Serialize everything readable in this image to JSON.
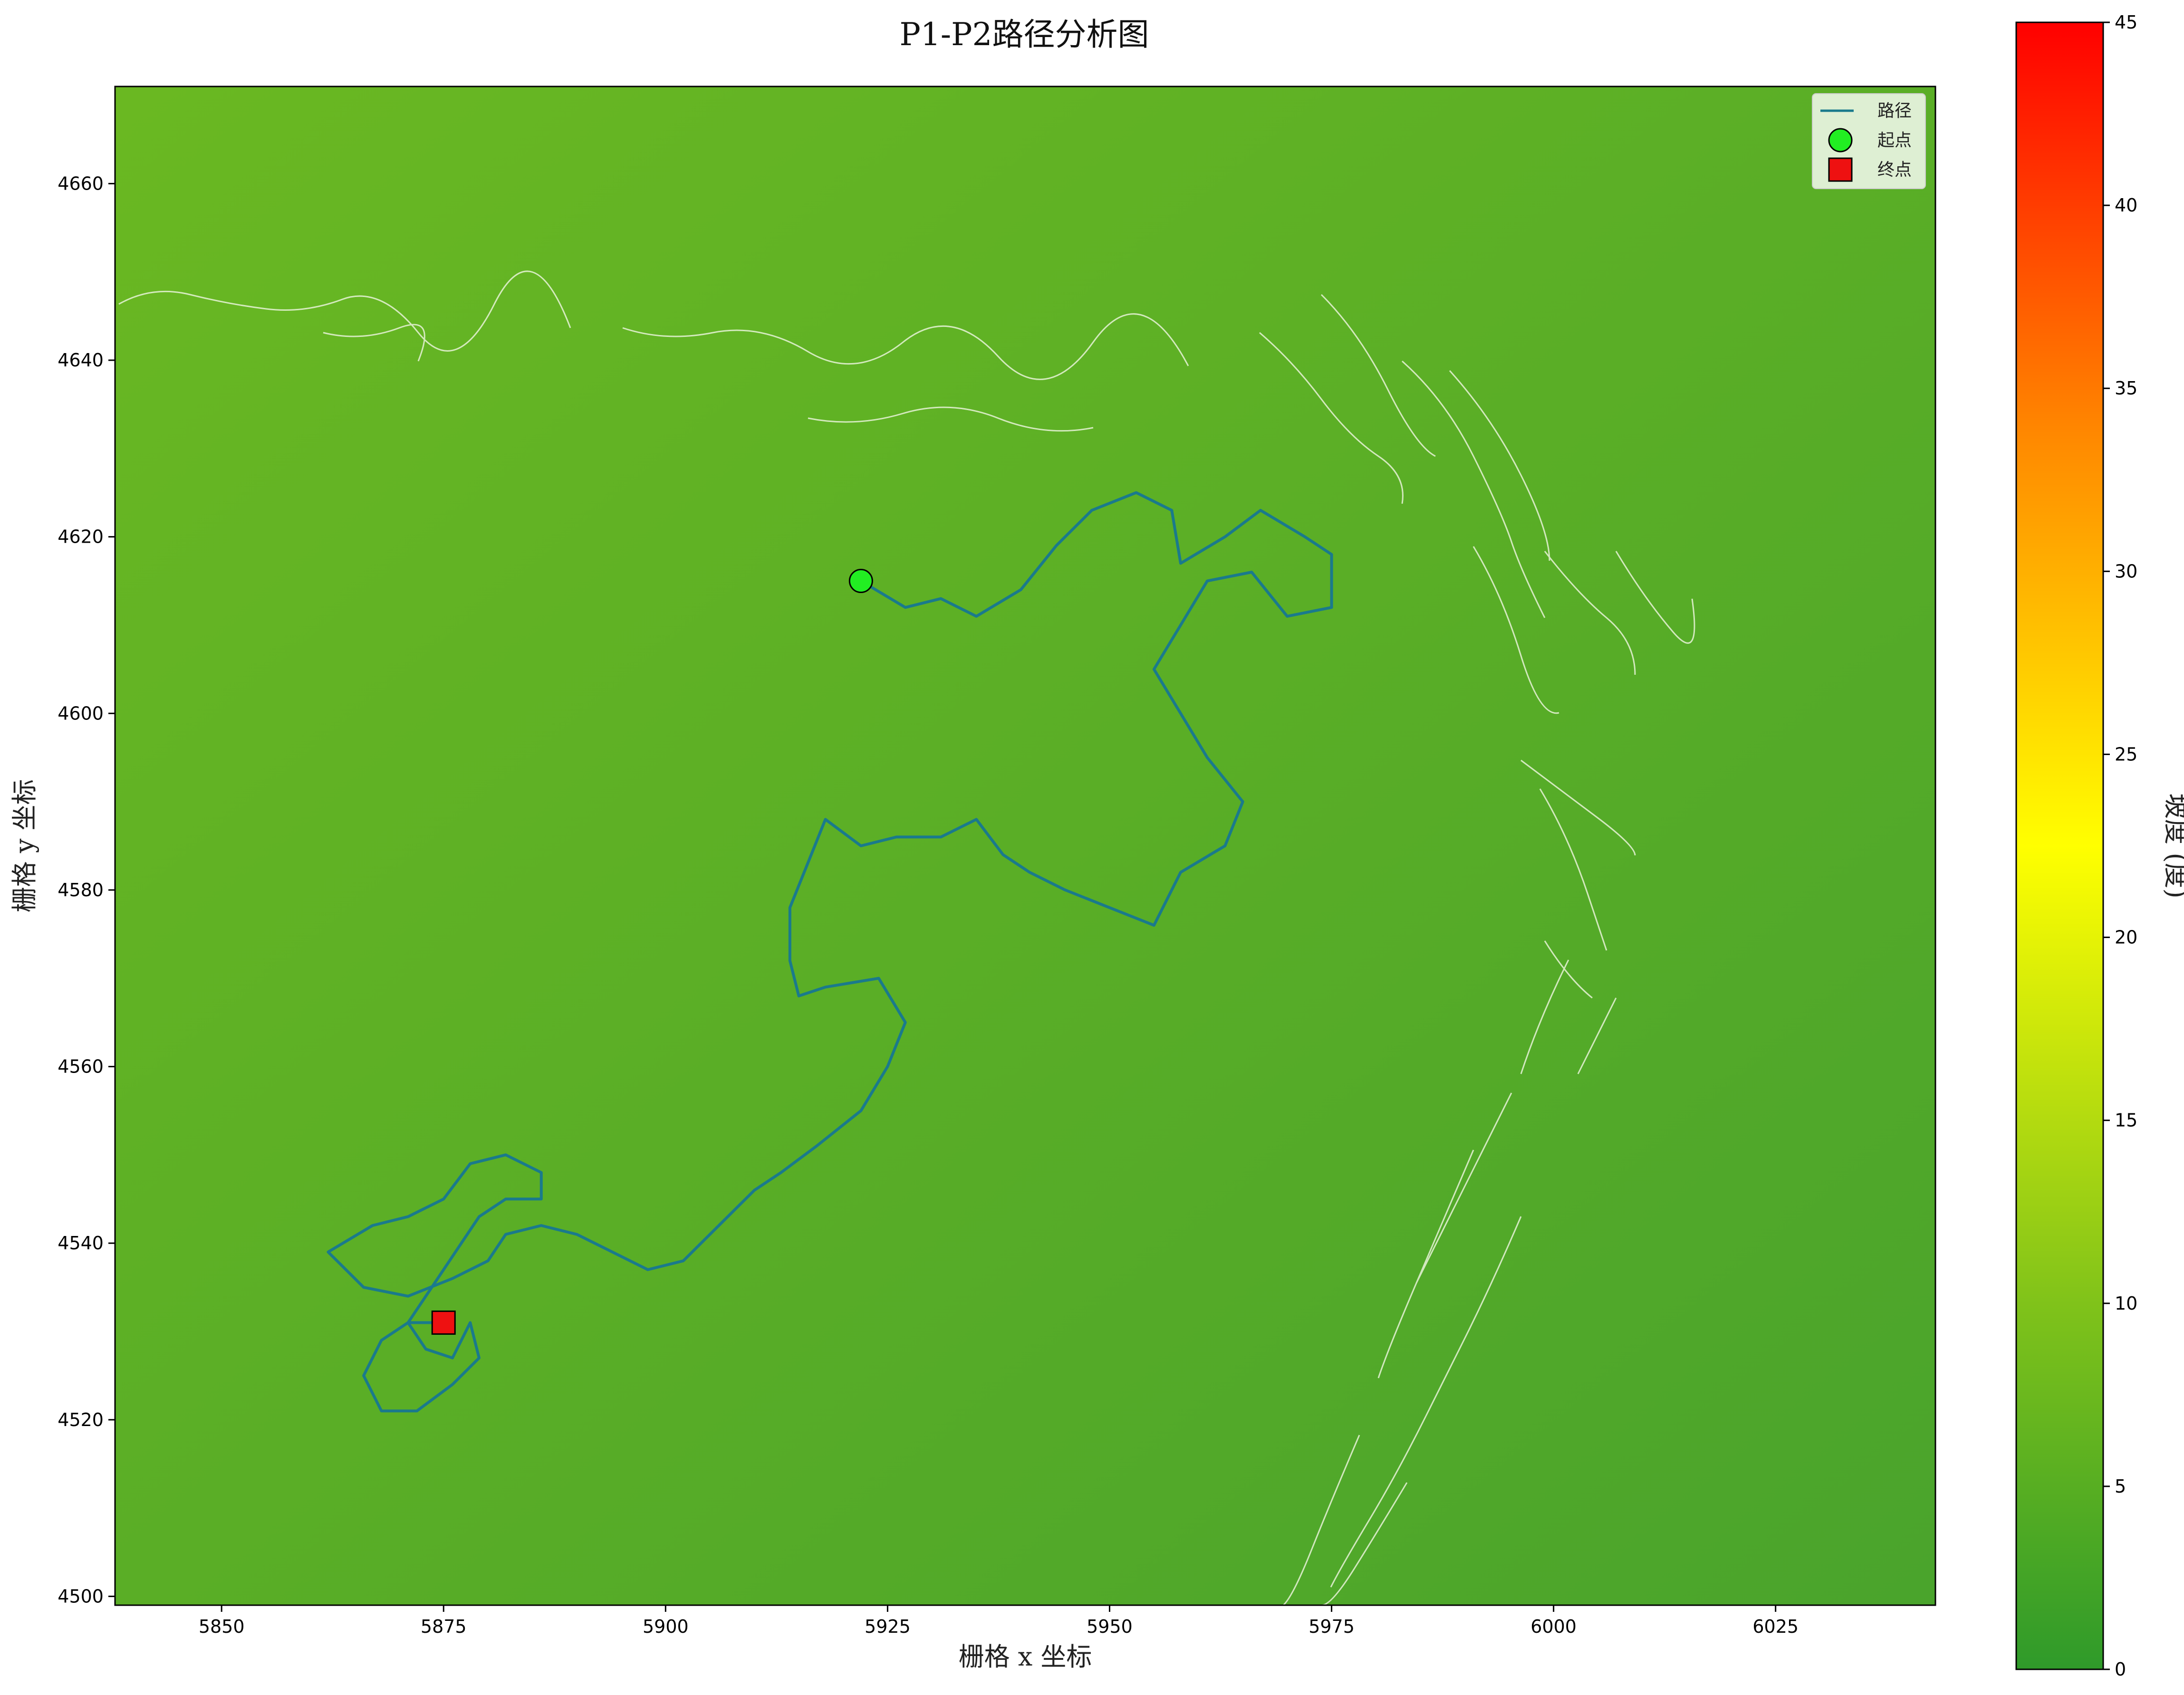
{
  "chart_data": {
    "type": "line",
    "title": "P1-P2路径分析图",
    "xlabel": "栅格 x 坐标",
    "ylabel": "栅格 y 坐标",
    "xlim": [
      5838,
      6043
    ],
    "ylim": [
      4499,
      4671
    ],
    "x_ticks": [
      5850,
      5875,
      5900,
      5925,
      5950,
      5975,
      6000,
      6025
    ],
    "y_ticks": [
      4500,
      4520,
      4540,
      4560,
      4580,
      4600,
      4620,
      4640,
      4660
    ],
    "background": "slope raster with light contour lines",
    "legend": {
      "position": "top-right",
      "entries": [
        {
          "label": "路径",
          "kind": "line",
          "color": "#1a7a8c"
        },
        {
          "label": "起点",
          "kind": "circle",
          "color": "#22ee22"
        },
        {
          "label": "终点",
          "kind": "square",
          "color": "#ee1111"
        }
      ]
    },
    "colorbar": {
      "label": "坡度 (度)",
      "min": 0,
      "max": 45,
      "ticks": [
        0,
        5,
        10,
        15,
        20,
        25,
        30,
        35,
        40,
        45
      ],
      "colors": [
        "#2f9a2a",
        "#7fc21a",
        "#ffff00",
        "#ff8800",
        "#ff0000"
      ]
    },
    "start": {
      "name": "起点",
      "x": 5922,
      "y": 4615
    },
    "end": {
      "name": "终点",
      "x": 5875,
      "y": 4531
    },
    "series": [
      {
        "name": "路径",
        "color": "#1a7a8c",
        "points": [
          [
            5922,
            4615
          ],
          [
            5927,
            4612
          ],
          [
            5931,
            4613
          ],
          [
            5935,
            4611
          ],
          [
            5940,
            4614
          ],
          [
            5944,
            4619
          ],
          [
            5948,
            4623
          ],
          [
            5953,
            4625
          ],
          [
            5957,
            4623
          ],
          [
            5958,
            4617
          ],
          [
            5963,
            4620
          ],
          [
            5967,
            4623
          ],
          [
            5972,
            4620
          ],
          [
            5975,
            4618
          ],
          [
            5975,
            4612
          ],
          [
            5970,
            4611
          ],
          [
            5966,
            4616
          ],
          [
            5961,
            4615
          ],
          [
            5958,
            4610
          ],
          [
            5955,
            4605
          ],
          [
            5958,
            4600
          ],
          [
            5961,
            4595
          ],
          [
            5965,
            4590
          ],
          [
            5963,
            4585
          ],
          [
            5958,
            4582
          ],
          [
            5955,
            4576
          ],
          [
            5950,
            4578
          ],
          [
            5945,
            4580
          ],
          [
            5941,
            4582
          ],
          [
            5938,
            4584
          ],
          [
            5935,
            4588
          ],
          [
            5931,
            4586
          ],
          [
            5926,
            4586
          ],
          [
            5922,
            4585
          ],
          [
            5918,
            4588
          ],
          [
            5916,
            4583
          ],
          [
            5914,
            4578
          ],
          [
            5914,
            4572
          ],
          [
            5915,
            4568
          ],
          [
            5918,
            4569
          ],
          [
            5924,
            4570
          ],
          [
            5927,
            4565
          ],
          [
            5925,
            4560
          ],
          [
            5922,
            4555
          ],
          [
            5917,
            4551
          ],
          [
            5913,
            4548
          ],
          [
            5910,
            4546
          ],
          [
            5906,
            4542
          ],
          [
            5902,
            4538
          ],
          [
            5898,
            4537
          ],
          [
            5894,
            4539
          ],
          [
            5890,
            4541
          ],
          [
            5886,
            4542
          ],
          [
            5882,
            4541
          ],
          [
            5880,
            4538
          ],
          [
            5876,
            4536
          ],
          [
            5871,
            4534
          ],
          [
            5866,
            4535
          ],
          [
            5862,
            4539
          ],
          [
            5867,
            4542
          ],
          [
            5871,
            4543
          ],
          [
            5875,
            4545
          ],
          [
            5878,
            4549
          ],
          [
            5882,
            4550
          ],
          [
            5886,
            4548
          ],
          [
            5886,
            4545
          ],
          [
            5882,
            4545
          ],
          [
            5879,
            4543
          ],
          [
            5877,
            4540
          ],
          [
            5875,
            4537
          ],
          [
            5873,
            4534
          ],
          [
            5871,
            4531
          ],
          [
            5873,
            4528
          ],
          [
            5876,
            4527
          ],
          [
            5878,
            4531
          ],
          [
            5879,
            4527
          ],
          [
            5876,
            4524
          ],
          [
            5872,
            4521
          ],
          [
            5868,
            4521
          ],
          [
            5866,
            4525
          ],
          [
            5868,
            4529
          ],
          [
            5871,
            4531
          ],
          [
            5875,
            4531
          ]
        ]
      }
    ]
  }
}
